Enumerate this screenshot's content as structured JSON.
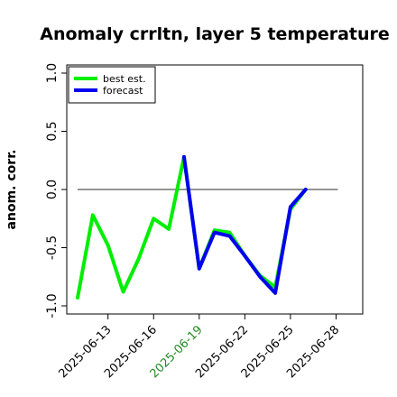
{
  "chart_data": {
    "type": "line",
    "title": "Anomaly crrltn, layer 5 temperature",
    "ylabel": "anom. corr.",
    "xlabel": "",
    "ylim": [
      -1.05,
      1.08
    ],
    "yticks": [
      -1.0,
      -0.5,
      0.0,
      0.5,
      1.0
    ],
    "ytick_labels": [
      "-1.0",
      "-0.5",
      "0.0",
      "0.5",
      "1.0"
    ],
    "x_dates": [
      "2025-06-11",
      "2025-06-12",
      "2025-06-13",
      "2025-06-14",
      "2025-06-15",
      "2025-06-16",
      "2025-06-17",
      "2025-06-18",
      "2025-06-19",
      "2025-06-20",
      "2025-06-21",
      "2025-06-22",
      "2025-06-23",
      "2025-06-24",
      "2025-06-25",
      "2025-06-26",
      "2025-06-27"
    ],
    "xtick_labels": [
      "2025-06-13",
      "2025-06-16",
      "2025-06-19",
      "2025-06-22",
      "2025-06-25",
      "2025-06-28"
    ],
    "xtick_highlight": "2025-06-19",
    "xtick_highlight_color": "#228B22",
    "reference_line": 0.0,
    "legend_position": "top-left",
    "series": [
      {
        "name": "best est.",
        "color": "#00ee00",
        "values": [
          -0.93,
          -0.22,
          -0.48,
          -0.88,
          -0.6,
          -0.25,
          -0.34,
          0.28,
          -0.68,
          -0.35,
          -0.37,
          -0.57,
          -0.74,
          -0.84,
          -0.17,
          0.0,
          null
        ]
      },
      {
        "name": "forecast",
        "color": "#0000ee",
        "values": [
          null,
          null,
          null,
          null,
          null,
          null,
          null,
          0.28,
          -0.68,
          -0.37,
          -0.4,
          -0.57,
          -0.75,
          -0.89,
          -0.15,
          0.0,
          null
        ]
      }
    ]
  }
}
